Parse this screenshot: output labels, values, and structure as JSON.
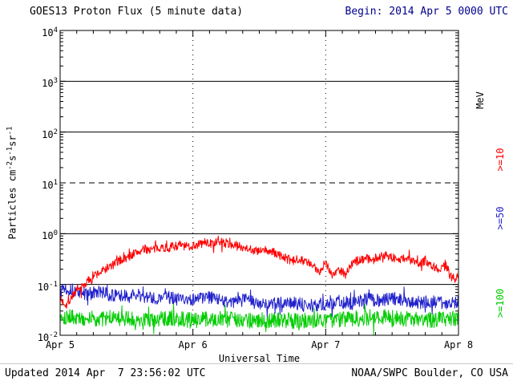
{
  "header": {
    "title": "GOES13 Proton Flux (5 minute data)",
    "begin": "Begin: 2014 Apr 5 0000 UTC",
    "begin_color": "#00008b"
  },
  "footer": {
    "updated": "Updated 2014 Apr  7 23:56:02 UTC",
    "credit": "NOAA/SWPC Boulder, CO USA"
  },
  "chart_data": {
    "type": "line",
    "title": "GOES13 Proton Flux (5 minute data)",
    "x_axis": {
      "label": "Universal Time",
      "ticks": [
        "Apr 5",
        "Apr 6",
        "Apr 7",
        "Apr 8"
      ],
      "range_days": [
        0,
        3
      ],
      "minor_tick_days": 0.125
    },
    "y_axis": {
      "label_parts": [
        {
          "t": "Particles cm"
        },
        {
          "s": "-2"
        },
        {
          "t": "s"
        },
        {
          "s": "-1"
        },
        {
          "t": "sr"
        },
        {
          "s": "-1"
        }
      ],
      "log_range": [
        -2,
        4
      ],
      "solid_gridlines_exp": [
        3,
        2,
        0,
        -1
      ],
      "dashed_gridlines_exp": [
        1
      ]
    },
    "grid": {
      "vertical_dotted_days": [
        1,
        2
      ]
    },
    "right_labels": [
      {
        "text": "MeV",
        "color": "#000000"
      },
      {
        "text": ">=10",
        "color": "#ff0000"
      },
      {
        "text": ">=50",
        "color": "#2222cc"
      },
      {
        "text": ">=100",
        "color": "#00cc00"
      }
    ],
    "samples_per_day": 288,
    "floor": 0.01,
    "series": [
      {
        "name": ">=10 MeV",
        "color": "#ff0000",
        "noise_log10": 0.09,
        "seed": 7,
        "keyframes": [
          [
            0.0,
            0.05
          ],
          [
            0.05,
            0.04
          ],
          [
            0.1,
            0.065
          ],
          [
            0.15,
            0.08
          ],
          [
            0.2,
            0.11
          ],
          [
            0.25,
            0.15
          ],
          [
            0.3,
            0.17
          ],
          [
            0.35,
            0.21
          ],
          [
            0.4,
            0.24
          ],
          [
            0.45,
            0.3
          ],
          [
            0.5,
            0.33
          ],
          [
            0.55,
            0.4
          ],
          [
            0.6,
            0.45
          ],
          [
            0.65,
            0.5
          ],
          [
            0.7,
            0.48
          ],
          [
            0.75,
            0.55
          ],
          [
            0.8,
            0.52
          ],
          [
            0.85,
            0.56
          ],
          [
            0.9,
            0.6
          ],
          [
            0.95,
            0.55
          ],
          [
            1.0,
            0.58
          ],
          [
            1.05,
            0.62
          ],
          [
            1.1,
            0.68
          ],
          [
            1.15,
            0.62
          ],
          [
            1.2,
            0.7
          ],
          [
            1.25,
            0.65
          ],
          [
            1.3,
            0.6
          ],
          [
            1.35,
            0.56
          ],
          [
            1.4,
            0.54
          ],
          [
            1.45,
            0.48
          ],
          [
            1.5,
            0.44
          ],
          [
            1.55,
            0.47
          ],
          [
            1.6,
            0.43
          ],
          [
            1.65,
            0.38
          ],
          [
            1.7,
            0.33
          ],
          [
            1.75,
            0.28
          ],
          [
            1.8,
            0.33
          ],
          [
            1.85,
            0.28
          ],
          [
            1.9,
            0.23
          ],
          [
            1.95,
            0.18
          ],
          [
            2.0,
            0.28
          ],
          [
            2.05,
            0.15
          ],
          [
            2.1,
            0.2
          ],
          [
            2.15,
            0.16
          ],
          [
            2.2,
            0.26
          ],
          [
            2.25,
            0.3
          ],
          [
            2.3,
            0.34
          ],
          [
            2.35,
            0.3
          ],
          [
            2.4,
            0.34
          ],
          [
            2.45,
            0.4
          ],
          [
            2.5,
            0.34
          ],
          [
            2.55,
            0.3
          ],
          [
            2.6,
            0.34
          ],
          [
            2.65,
            0.29
          ],
          [
            2.7,
            0.25
          ],
          [
            2.75,
            0.3
          ],
          [
            2.8,
            0.24
          ],
          [
            2.85,
            0.2
          ],
          [
            2.9,
            0.25
          ],
          [
            2.95,
            0.13
          ],
          [
            3.0,
            0.14
          ]
        ]
      },
      {
        "name": ">=50 MeV",
        "color": "#2222cc",
        "noise_log10": 0.13,
        "seed": 13,
        "keyframes": [
          [
            0.0,
            0.095
          ],
          [
            0.1,
            0.075
          ],
          [
            0.2,
            0.065
          ],
          [
            0.3,
            0.07
          ],
          [
            0.4,
            0.06
          ],
          [
            0.5,
            0.058
          ],
          [
            0.6,
            0.062
          ],
          [
            0.7,
            0.052
          ],
          [
            0.8,
            0.058
          ],
          [
            0.9,
            0.05
          ],
          [
            1.0,
            0.052
          ],
          [
            1.1,
            0.056
          ],
          [
            1.2,
            0.05
          ],
          [
            1.3,
            0.046
          ],
          [
            1.4,
            0.05
          ],
          [
            1.5,
            0.042
          ],
          [
            1.6,
            0.04
          ],
          [
            1.7,
            0.046
          ],
          [
            1.8,
            0.042
          ],
          [
            1.9,
            0.038
          ],
          [
            2.0,
            0.042
          ],
          [
            2.1,
            0.046
          ],
          [
            2.2,
            0.042
          ],
          [
            2.3,
            0.052
          ],
          [
            2.4,
            0.048
          ],
          [
            2.5,
            0.054
          ],
          [
            2.6,
            0.048
          ],
          [
            2.7,
            0.044
          ],
          [
            2.8,
            0.048
          ],
          [
            2.9,
            0.042
          ],
          [
            3.0,
            0.046
          ]
        ]
      },
      {
        "name": ">=100 MeV",
        "color": "#00cc00",
        "noise_log10": 0.16,
        "seed": 101,
        "keyframes": [
          [
            0.0,
            0.024
          ],
          [
            0.2,
            0.021
          ],
          [
            0.4,
            0.022
          ],
          [
            0.6,
            0.02
          ],
          [
            0.8,
            0.022
          ],
          [
            1.0,
            0.02
          ],
          [
            1.2,
            0.021
          ],
          [
            1.4,
            0.019
          ],
          [
            1.6,
            0.02
          ],
          [
            1.8,
            0.019
          ],
          [
            2.0,
            0.02
          ],
          [
            2.2,
            0.021
          ],
          [
            2.4,
            0.023
          ],
          [
            2.6,
            0.021
          ],
          [
            2.8,
            0.02
          ],
          [
            3.0,
            0.021
          ]
        ]
      }
    ]
  }
}
